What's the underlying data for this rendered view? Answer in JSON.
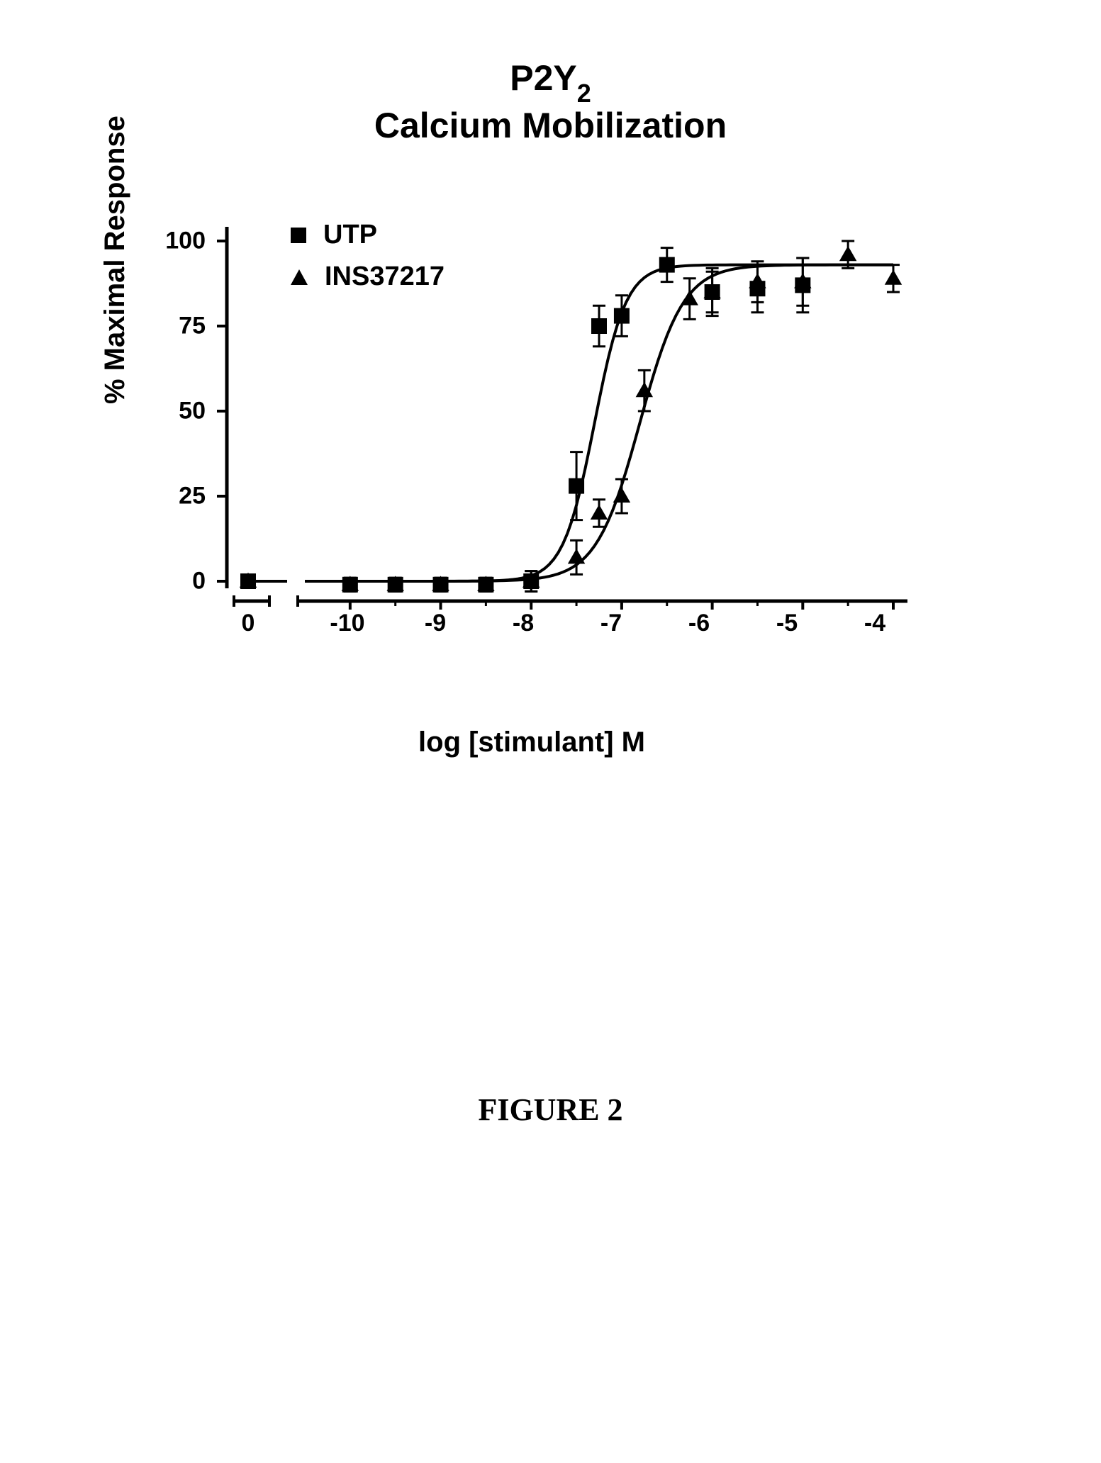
{
  "figure": {
    "title_line1_prefix": "P2Y",
    "title_line1_sub": "2",
    "title_line2": "Calcium Mobilization",
    "caption": "FIGURE 2",
    "y_axis_label": "% Maximal Response",
    "x_axis_label": "log [stimulant] M",
    "chart": {
      "type": "scatter-line",
      "background_color": "#ffffff",
      "axis_color": "#000000",
      "line_color": "#000000",
      "line_width": 4,
      "marker_size": 22,
      "error_bar_width": 3,
      "title_fontsize": 50,
      "label_fontsize": 40,
      "tick_fontsize": 34,
      "ylim": [
        0,
        100
      ],
      "yticks": [
        0,
        25,
        50,
        75,
        100
      ],
      "x_zero_isolated": 0,
      "xlim": [
        -10.5,
        -4
      ],
      "xticks": [
        -10,
        -9,
        -8,
        -7,
        -6,
        -5,
        -4
      ],
      "x_zero_label": "0",
      "legend": {
        "items": [
          {
            "label": "UTP",
            "marker": "square"
          },
          {
            "label": "INS37217",
            "marker": "triangle"
          }
        ]
      },
      "series": [
        {
          "name": "UTP",
          "marker": "square",
          "color": "#000000",
          "ec50_log": -7.3,
          "hill": 2.5,
          "top": 93,
          "bottom": 0,
          "zero_point": {
            "y": 0,
            "err": 0
          },
          "points": [
            {
              "x": -10,
              "y": -1,
              "err": 2
            },
            {
              "x": -9.5,
              "y": -1,
              "err": 2
            },
            {
              "x": -9.0,
              "y": -1,
              "err": 2
            },
            {
              "x": -8.5,
              "y": -1,
              "err": 2
            },
            {
              "x": -8.0,
              "y": 0,
              "err": 3
            },
            {
              "x": -7.5,
              "y": 28,
              "err": 10
            },
            {
              "x": -7.25,
              "y": 75,
              "err": 6
            },
            {
              "x": -7.0,
              "y": 78,
              "err": 6
            },
            {
              "x": -6.5,
              "y": 93,
              "err": 5
            },
            {
              "x": -6.0,
              "y": 85,
              "err": 7
            },
            {
              "x": -5.5,
              "y": 86,
              "err": 7
            },
            {
              "x": -5.0,
              "y": 87,
              "err": 8
            }
          ]
        },
        {
          "name": "INS37217",
          "marker": "triangle",
          "color": "#000000",
          "ec50_log": -6.8,
          "hill": 1.8,
          "top": 93,
          "bottom": 0,
          "zero_point": {
            "y": 0,
            "err": 0
          },
          "points": [
            {
              "x": -10,
              "y": -1,
              "err": 2
            },
            {
              "x": -9.5,
              "y": -1,
              "err": 2
            },
            {
              "x": -9.0,
              "y": -1,
              "err": 2
            },
            {
              "x": -8.5,
              "y": -1,
              "err": 2
            },
            {
              "x": -8.0,
              "y": 0,
              "err": 3
            },
            {
              "x": -7.5,
              "y": 7,
              "err": 5
            },
            {
              "x": -7.25,
              "y": 20,
              "err": 4
            },
            {
              "x": -7.0,
              "y": 25,
              "err": 5
            },
            {
              "x": -6.75,
              "y": 56,
              "err": 6
            },
            {
              "x": -6.25,
              "y": 83,
              "err": 6
            },
            {
              "x": -6.0,
              "y": 85,
              "err": 6
            },
            {
              "x": -5.5,
              "y": 88,
              "err": 6
            },
            {
              "x": -5.0,
              "y": 88,
              "err": 7
            },
            {
              "x": -4.5,
              "y": 96,
              "err": 4
            },
            {
              "x": -4.0,
              "y": 89,
              "err": 4
            }
          ]
        }
      ]
    }
  }
}
